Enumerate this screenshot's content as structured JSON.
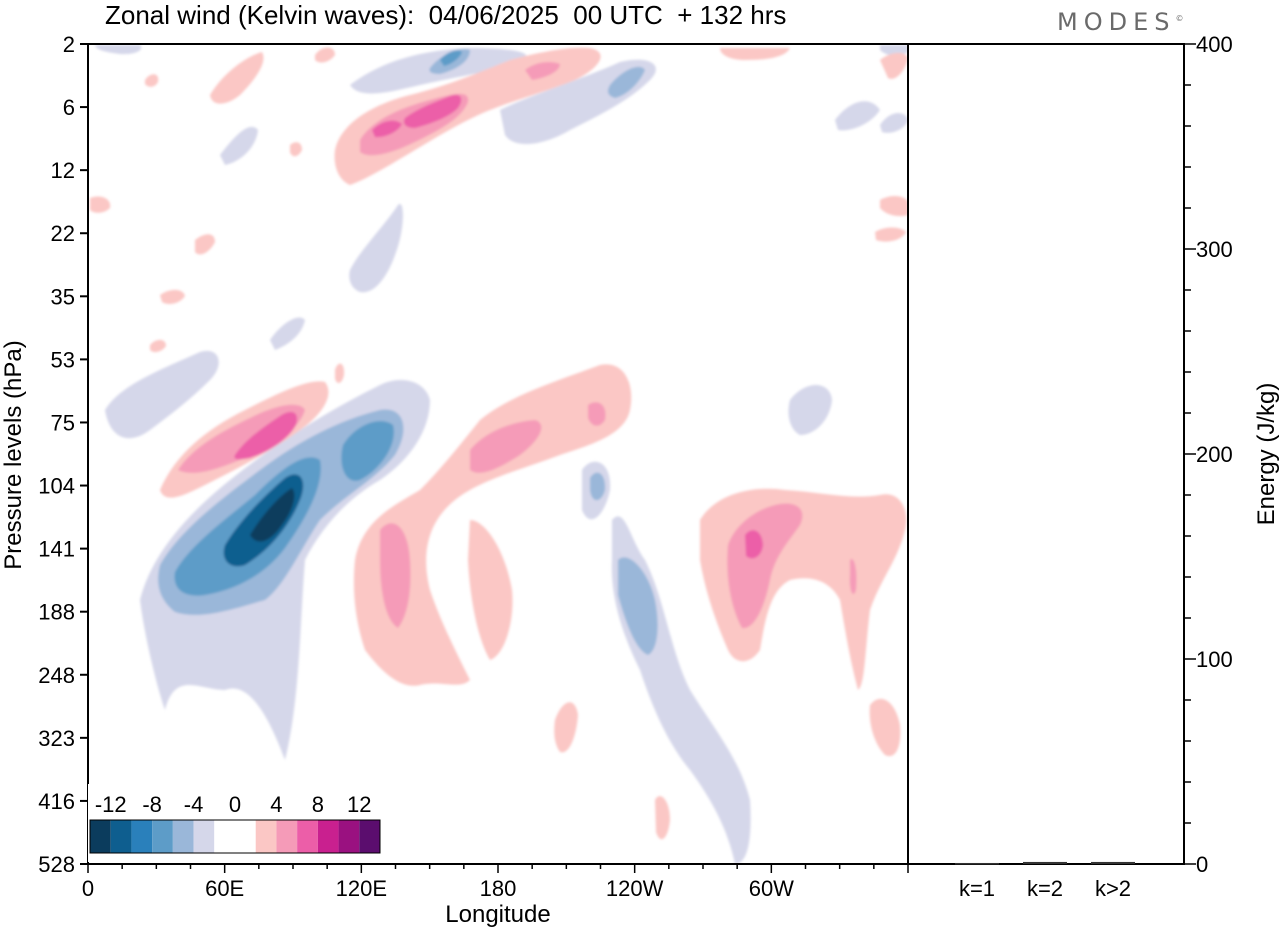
{
  "header": {
    "title": "Zonal wind (Kelvin waves):  04/06/2025  00 UTC  + 132 hrs",
    "brand": "MODES"
  },
  "chart_data": [
    {
      "type": "heatmap",
      "title": "Zonal wind (Kelvin waves):  04/06/2025  00 UTC  + 132 hrs",
      "xlabel": "Longitude",
      "ylabel": "Pressure levels (hPa)",
      "x_ticks": [
        "0",
        "60E",
        "120E",
        "180",
        "120W",
        "60W"
      ],
      "x_tick_degrees": [
        0,
        60,
        120,
        180,
        240,
        300
      ],
      "xlim": [
        0,
        360
      ],
      "y_ticks": [
        "2",
        "6",
        "12",
        "22",
        "35",
        "53",
        "75",
        "104",
        "141",
        "188",
        "248",
        "323",
        "416",
        "528"
      ],
      "y_scale": "model levels (categorical)",
      "colorbar": {
        "labels": [
          "-12",
          "-8",
          "-4",
          "0",
          "4",
          "8",
          "12"
        ],
        "level_values": [
          -14,
          -12,
          -10,
          -8,
          -6,
          -4,
          -2,
          2,
          4,
          6,
          8,
          10,
          12,
          14
        ],
        "colors": [
          "#0b3c5d",
          "#0e5e8f",
          "#2a80bb",
          "#5d9cc8",
          "#9ab7d9",
          "#d5d7ea",
          "#ffffff",
          "#ffffff",
          "#fbc7c5",
          "#f59bb8",
          "#ec5ea8",
          "#c9208f",
          "#9a1180",
          "#5b0d6e"
        ]
      },
      "features": [
        {
          "sign": "negative",
          "min_value": -12,
          "lon": [
            40,
            95
          ],
          "level": [
            "75",
            "188"
          ]
        },
        {
          "sign": "positive",
          "max_value": 8,
          "lon": [
            35,
            100
          ],
          "level": [
            "53",
            "104"
          ]
        },
        {
          "sign": "positive",
          "max_value": 8,
          "lon": [
            110,
            165
          ],
          "level": [
            "2",
            "12"
          ]
        },
        {
          "sign": "positive",
          "max_value": 6,
          "lon": [
            120,
            240
          ],
          "level": [
            "53",
            "248"
          ]
        },
        {
          "sign": "positive",
          "max_value": 8,
          "lon": [
            270,
            360
          ],
          "level": [
            "104",
            "248"
          ]
        },
        {
          "sign": "negative",
          "min_value": -6,
          "lon": [
            225,
            250
          ],
          "level": [
            "104",
            "528"
          ]
        }
      ]
    },
    {
      "type": "bar",
      "categories": [
        "k=1",
        "k=2",
        "k>2"
      ],
      "values": [
        0.5,
        1,
        1
      ],
      "ylabel": "Energy (J/kg)",
      "ylim": [
        0,
        400
      ],
      "y_ticks": [
        "0",
        "100",
        "200",
        "300",
        "400"
      ]
    }
  ]
}
